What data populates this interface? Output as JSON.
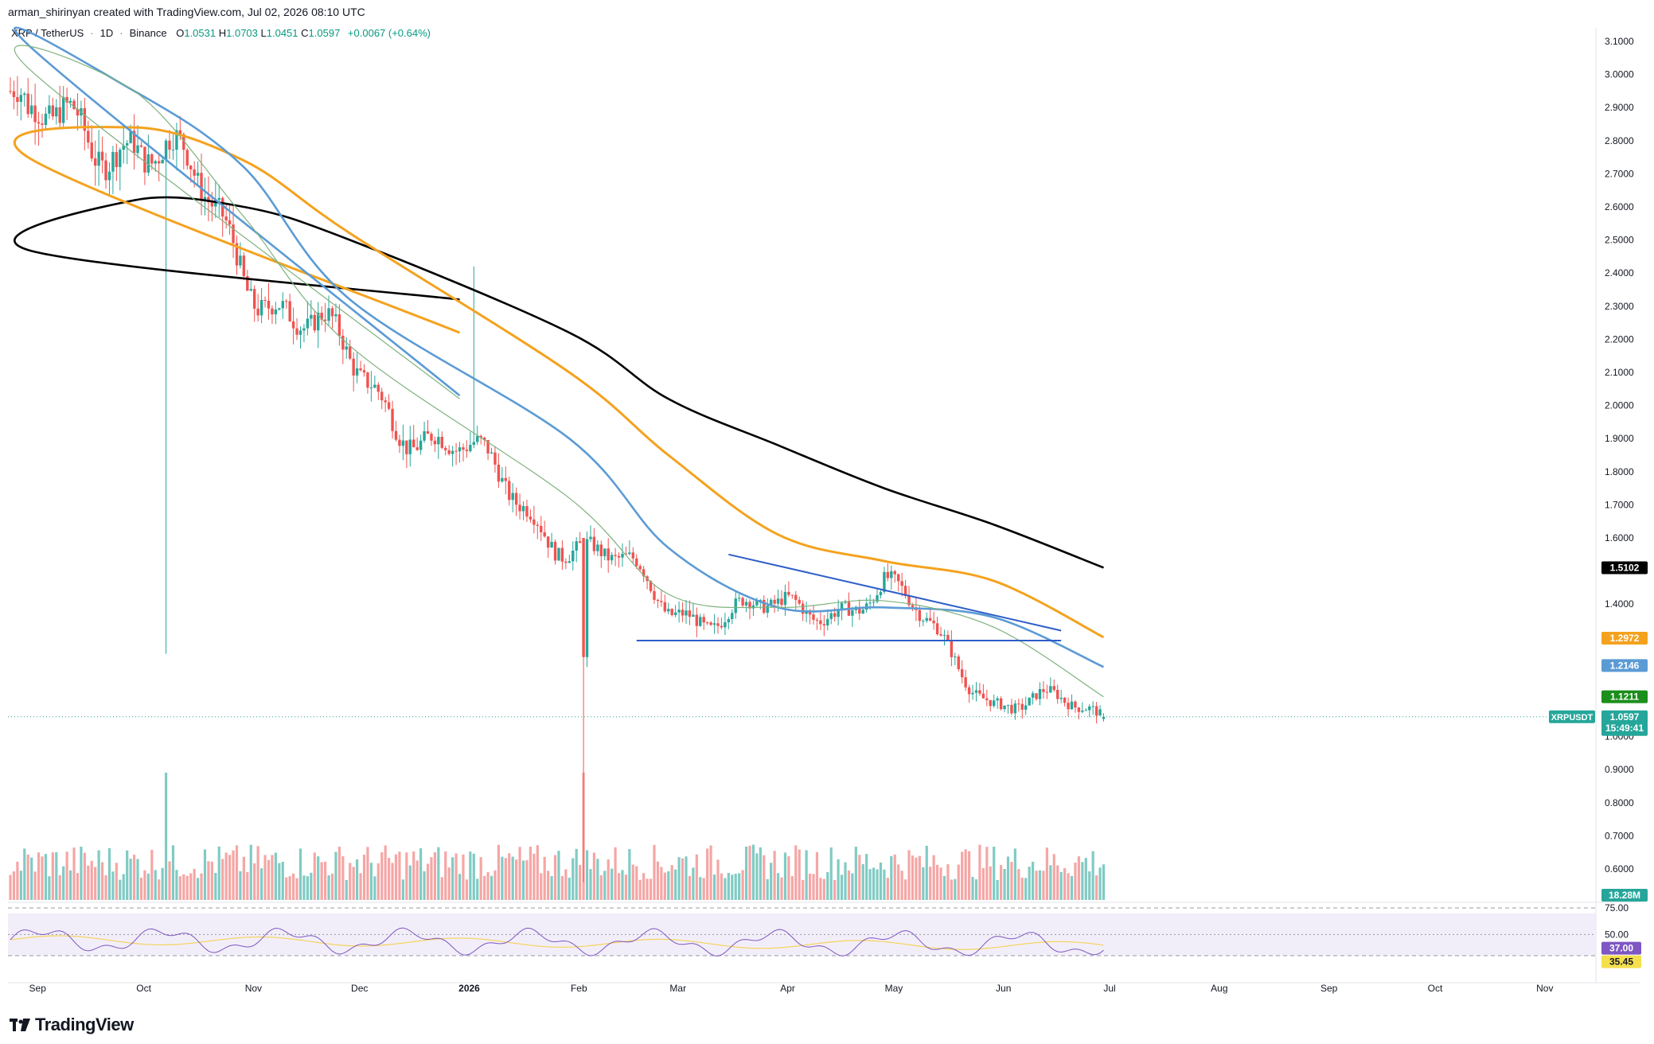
{
  "caption": "arman_shirinyan created with TradingView.com, Jul 02, 2026 08:10 UTC",
  "legend": {
    "symbol": "XRP / TetherUS",
    "interval": "1D",
    "exchange": "Binance",
    "open_key": "O",
    "open": "1.0531",
    "high_key": "H",
    "high": "1.0703",
    "low_key": "L",
    "low": "1.0451",
    "close_key": "C",
    "close": "1.0597",
    "change": "+0.0067 (+0.64%)"
  },
  "colors": {
    "up": "#26a69a",
    "down": "#ef5350",
    "vol_up": "#80cbc4",
    "vol_down": "#f5a6a5",
    "ma_black": "#000000",
    "ma_orange": "#f4a21e",
    "ma_blue": "#5b9bd5",
    "ma_green": "#7fb27f",
    "rsi_line": "#7e57c2",
    "rsi_ma": "#f4d35e",
    "trendline": "#2e5dc8"
  },
  "price_axis": {
    "ticks": [
      "3.1000",
      "3.0000",
      "2.9000",
      "2.8000",
      "2.7000",
      "2.6000",
      "2.5000",
      "2.4000",
      "2.3000",
      "2.2000",
      "2.1000",
      "2.0000",
      "1.9000",
      "1.8000",
      "1.7000",
      "1.6000",
      "1.4000",
      "1.0000",
      "0.9000",
      "0.8000",
      "0.7000",
      "0.6000"
    ],
    "tick_values": [
      3.1,
      3.0,
      2.9,
      2.8,
      2.7,
      2.6,
      2.5,
      2.4,
      2.3,
      2.2,
      2.1,
      2.0,
      1.9,
      1.8,
      1.7,
      1.6,
      1.4,
      1.0,
      0.9,
      0.8,
      0.7,
      0.6
    ]
  },
  "tags": {
    "ma_black": "1.5102",
    "ma_orange": "1.2972",
    "ma_blue": "1.2146",
    "ma_green": "1.1211",
    "symbol": "XRPUSDT",
    "price": "1.0597",
    "countdown": "15:49:41",
    "volume": "18.28M"
  },
  "rsi_axis": {
    "ticks": [
      "75.00",
      "50.00"
    ],
    "rsi_value": "37.00",
    "rsi_ma_value": "35.45"
  },
  "time_axis": {
    "labels": [
      "Sep",
      "Oct",
      "Nov",
      "Dec",
      "2026",
      "Feb",
      "Mar",
      "Apr",
      "May",
      "Jun",
      "Jul",
      "Aug",
      "Sep",
      "Oct",
      "Nov"
    ]
  },
  "chart_data": {
    "type": "candlestick",
    "title": "XRP / TetherUS · 1D · Binance",
    "ylim": [
      0.55,
      3.15
    ],
    "series": [
      {
        "name": "MA black",
        "values_by_month": {
          "Sep": 2.47,
          "Oct": 2.62,
          "Nov": 2.6,
          "Dec": 2.5,
          "2026": 2.32,
          "Feb": 2.22,
          "Mar": 2.02,
          "Apr": 1.88,
          "May": 1.75,
          "Jun": 1.64,
          "Jul": 1.51
        }
      },
      {
        "name": "MA orange",
        "values_by_month": {
          "Sep": 2.75,
          "Oct": 2.84,
          "Nov": 2.74,
          "Dec": 2.52,
          "2026": 2.22,
          "Feb": 2.1,
          "Mar": 1.85,
          "Apr": 1.61,
          "May": 1.53,
          "Jun": 1.47,
          "Jul": 1.3
        }
      },
      {
        "name": "MA blue",
        "values_by_month": {
          "Sep": 3.09,
          "Oct": 2.95,
          "Nov": 2.72,
          "Dec": 2.32,
          "2026": 2.03,
          "Feb": 1.9,
          "Mar": 1.57,
          "Apr": 1.39,
          "May": 1.39,
          "Jun": 1.36,
          "Jul": 1.21
        }
      },
      {
        "name": "MA green",
        "values_by_month": {
          "Sep": 3.02,
          "Oct": 2.95,
          "Nov": 2.57,
          "Dec": 2.18,
          "2026": 2.02,
          "Feb": 1.72,
          "Mar": 1.43,
          "Apr": 1.39,
          "May": 1.41,
          "Jun": 1.33,
          "Jul": 1.12
        }
      },
      {
        "name": "Close",
        "values_by_month": {
          "Sep": 2.8,
          "Oct": 2.85,
          "Nov": 2.45,
          "Dec": 2.1,
          "2026": 1.85,
          "Feb": 1.6,
          "Mar": 1.4,
          "Apr": 1.36,
          "May": 1.45,
          "Jun": 1.12,
          "Jul": 1.06
        }
      }
    ],
    "annotations": [
      {
        "type": "descending-trendline",
        "from": {
          "date": "Mar 18 2026",
          "price": 1.55
        },
        "to": {
          "date": "Jun 20 2026",
          "price": 1.32
        }
      },
      {
        "type": "support-line",
        "price": 1.29,
        "from": "Feb 20 2026",
        "to": "Jun 20 2026"
      }
    ],
    "last_price": 1.0597,
    "rsi": {
      "levels": [
        75,
        50,
        30
      ],
      "value": 37.0,
      "ma": 35.45
    }
  }
}
